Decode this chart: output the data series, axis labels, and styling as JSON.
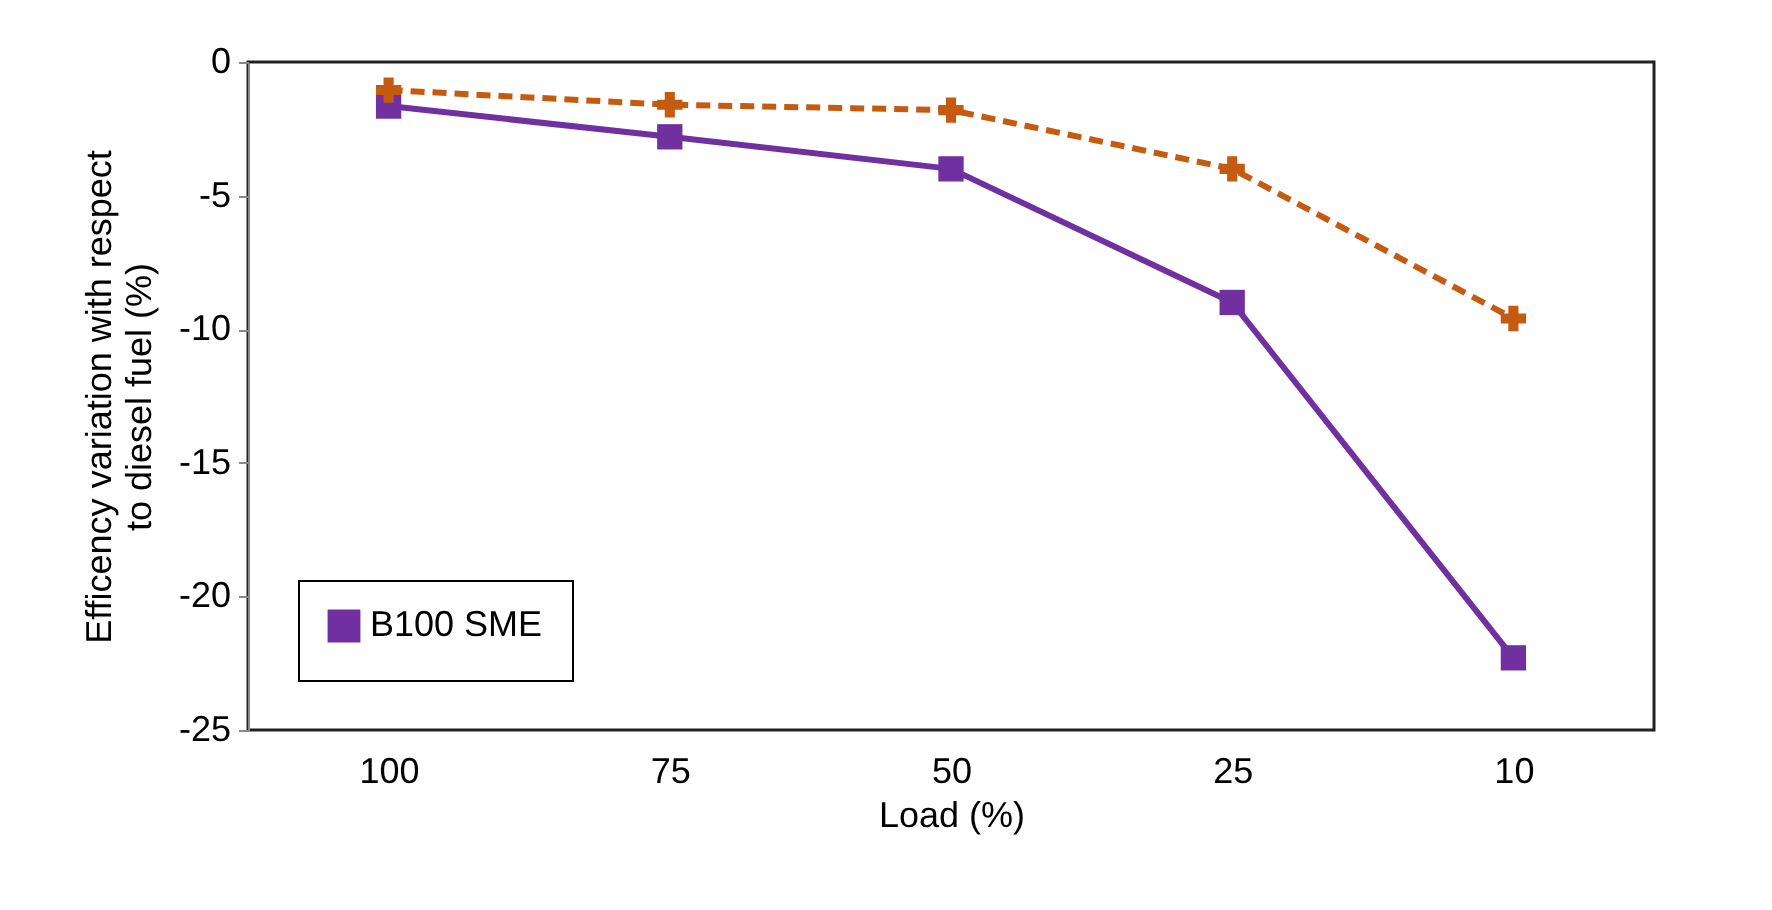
{
  "chart_data": {
    "type": "line",
    "xlabel": "Load (%)",
    "ylabel": "Efficency variation with respect to diesel fuel (%)",
    "categories": [
      "100",
      "75",
      "50",
      "25",
      "10"
    ],
    "series": [
      {
        "name": "B100 SME",
        "color": "#7030a0",
        "values": [
          -1.65,
          -2.8,
          -4.0,
          -9.0,
          -22.3
        ],
        "marker": "square",
        "line_style": "solid"
      },
      {
        "color": "#c55a11",
        "values": [
          -1.05,
          -1.6,
          -1.8,
          -4.0,
          -9.6
        ],
        "marker": "cross",
        "line_style": "dashed"
      }
    ],
    "ylim": [
      -25,
      0
    ],
    "yticks": [
      -25,
      -20,
      -15,
      -10,
      -5,
      0
    ],
    "grid": false,
    "legend": "bottom left"
  }
}
